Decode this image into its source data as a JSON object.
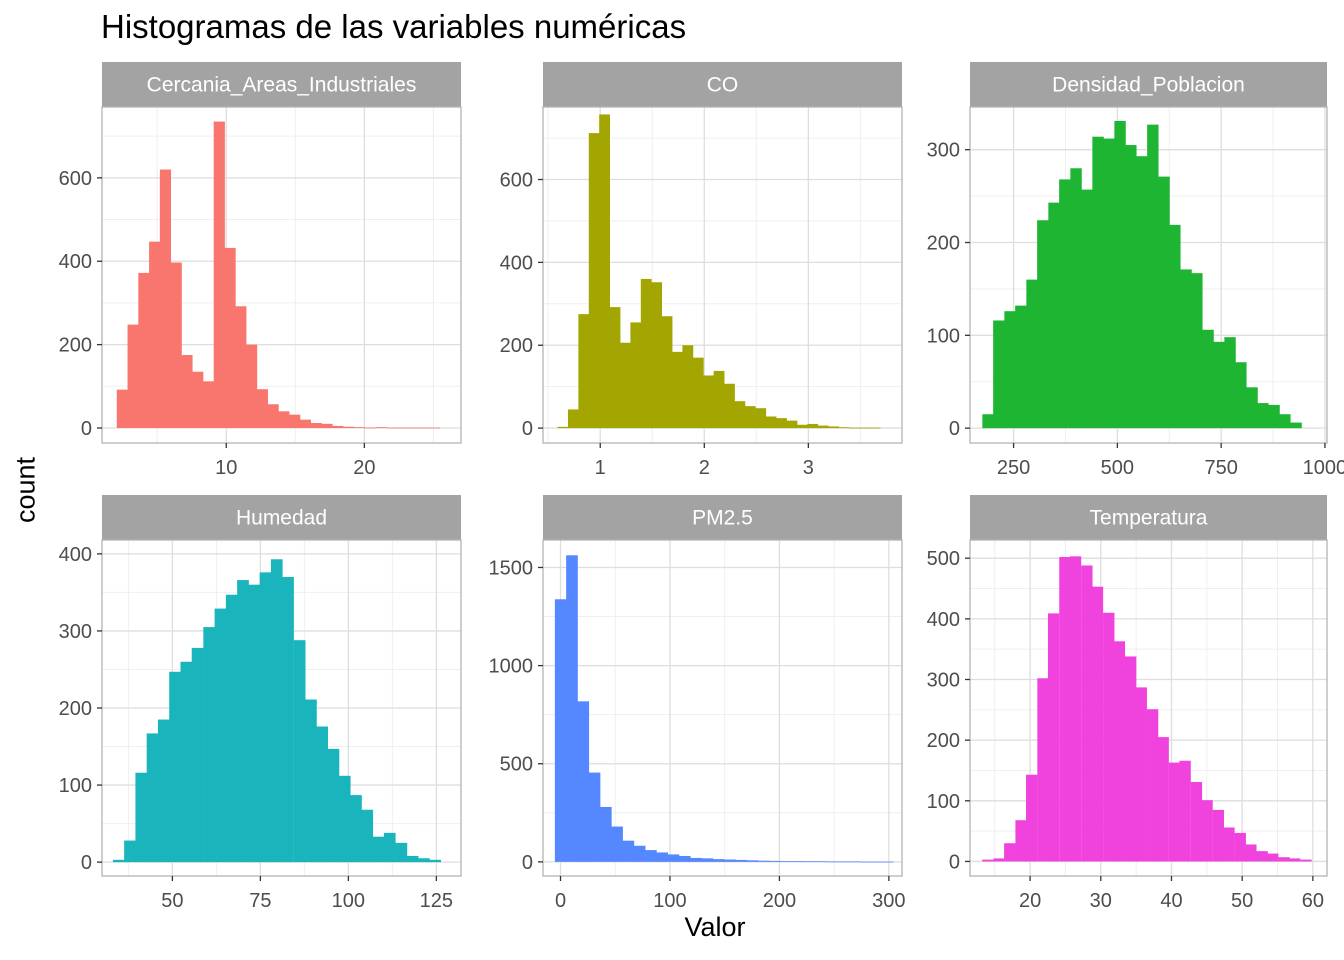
{
  "title": "Histogramas de las variables numéricas",
  "xlabel": "Valor",
  "ylabel": "count",
  "colors": {
    "strip_background": "#a3a3a3",
    "strip_text": "#ffffff",
    "panel_border": "#b3b3b3",
    "grid_major": "#dedede",
    "grid_minor": "#efefef",
    "tick_label": "#4d4d4d"
  },
  "chart_data": [
    {
      "type": "bar",
      "facet": "Cercania_Areas_Industriales",
      "color": "#F8766D",
      "xlim": [
        1,
        27
      ],
      "ylim": [
        -36,
        770
      ],
      "xticks": [
        10,
        20
      ],
      "yticks": [
        0,
        200,
        400,
        600
      ],
      "bin_width": 0.78,
      "bin_centers": [
        2.46,
        3.24,
        4.02,
        4.8,
        5.58,
        6.36,
        7.14,
        7.92,
        8.7,
        9.48,
        10.26,
        11.04,
        11.82,
        12.6,
        13.38,
        14.16,
        14.94,
        15.72,
        16.5,
        17.28,
        18.06,
        18.84,
        19.62,
        20.4,
        21.18,
        21.96,
        22.74,
        23.52,
        24.3,
        25.08
      ],
      "counts": [
        92,
        248,
        372,
        447,
        620,
        397,
        175,
        135,
        112,
        735,
        432,
        292,
        200,
        93,
        57,
        40,
        32,
        20,
        12,
        10,
        5,
        3,
        2,
        1,
        2,
        1,
        1,
        1,
        1,
        1
      ]
    },
    {
      "type": "bar",
      "facet": "CO",
      "color": "#A3A500",
      "xlim": [
        0.45,
        3.9
      ],
      "ylim": [
        -36,
        775
      ],
      "xticks": [
        1,
        2,
        3
      ],
      "yticks": [
        0,
        200,
        400,
        600
      ],
      "bin_width": 0.1,
      "bin_centers": [
        0.64,
        0.74,
        0.84,
        0.94,
        1.04,
        1.14,
        1.24,
        1.34,
        1.44,
        1.54,
        1.64,
        1.74,
        1.84,
        1.94,
        2.04,
        2.14,
        2.24,
        2.34,
        2.44,
        2.54,
        2.64,
        2.74,
        2.84,
        2.94,
        3.04,
        3.14,
        3.24,
        3.34,
        3.44,
        3.54,
        3.64
      ],
      "counts": [
        3,
        45,
        275,
        712,
        757,
        292,
        206,
        255,
        360,
        352,
        270,
        184,
        200,
        170,
        127,
        138,
        107,
        65,
        53,
        48,
        28,
        24,
        18,
        8,
        10,
        6,
        4,
        2,
        1,
        1,
        1
      ]
    },
    {
      "type": "bar",
      "facet": "Densidad_Poblacion",
      "color": "#1EB532",
      "xlim": [
        145,
        1005
      ],
      "ylim": [
        -16,
        346
      ],
      "xticks": [
        250,
        500,
        750,
        1000
      ],
      "yticks": [
        0,
        100,
        200,
        300
      ],
      "bin_width": 26.5,
      "bin_centers": [
        188,
        214,
        241,
        267,
        294,
        320,
        347,
        373,
        400,
        426,
        453,
        479,
        506,
        532,
        559,
        585,
        612,
        638,
        665,
        691,
        718,
        744,
        771,
        797,
        824,
        850,
        877,
        903,
        930
      ],
      "counts": [
        15,
        116,
        126,
        132,
        160,
        224,
        243,
        268,
        280,
        257,
        314,
        312,
        331,
        305,
        293,
        327,
        271,
        219,
        171,
        167,
        106,
        93,
        98,
        71,
        44,
        27,
        25,
        15,
        6
      ]
    },
    {
      "type": "bar",
      "facet": "Humedad",
      "color": "#1AB5BC",
      "xlim": [
        30,
        132
      ],
      "ylim": [
        -18,
        418
      ],
      "xticks": [
        50,
        75,
        100,
        125
      ],
      "yticks": [
        0,
        100,
        200,
        300,
        400
      ],
      "bin_width": 3.21,
      "bin_centers": [
        34.7,
        37.9,
        41.1,
        44.3,
        47.5,
        50.7,
        53.9,
        57.1,
        60.4,
        63.6,
        66.8,
        70,
        73.2,
        76.4,
        79.6,
        82.8,
        86.1,
        89.3,
        92.5,
        95.7,
        98.9,
        102.1,
        105.3,
        108.5,
        111.7,
        115,
        118.2,
        121.4,
        124.6
      ],
      "counts": [
        3,
        28,
        116,
        167,
        185,
        247,
        260,
        278,
        305,
        329,
        347,
        366,
        360,
        376,
        393,
        370,
        288,
        211,
        176,
        147,
        112,
        87,
        68,
        33,
        38,
        25,
        8,
        5,
        3
      ]
    },
    {
      "type": "bar",
      "facet": "PM2.5",
      "color": "#5588FF",
      "xlim": [
        -16,
        312
      ],
      "ylim": [
        -72,
        1640
      ],
      "xticks": [
        0,
        100,
        200,
        300
      ],
      "yticks": [
        0,
        500,
        1000,
        1500
      ],
      "bin_width": 10.3,
      "bin_centers": [
        0,
        10.3,
        20.6,
        30.9,
        41.2,
        51.5,
        61.8,
        72.1,
        82.4,
        92.7,
        103,
        113.3,
        123.6,
        133.9,
        144.2,
        154.5,
        164.8,
        175.1,
        185.4,
        195.7,
        206,
        216.3,
        226.6,
        236.9,
        247.2,
        257.5,
        267.8,
        278.1,
        288.4,
        298.7
      ],
      "counts": [
        1338,
        1562,
        818,
        455,
        280,
        180,
        108,
        82,
        60,
        48,
        38,
        30,
        20,
        18,
        14,
        12,
        10,
        8,
        6,
        5,
        4,
        4,
        3,
        3,
        2,
        2,
        2,
        1,
        1,
        1
      ]
    },
    {
      "type": "bar",
      "facet": "Temperatura",
      "color": "#F042DC",
      "xlim": [
        11.5,
        62
      ],
      "ylim": [
        -24,
        530
      ],
      "xticks": [
        20,
        30,
        40,
        50,
        60
      ],
      "yticks": [
        0,
        100,
        200,
        300,
        400,
        500
      ],
      "bin_width": 1.55,
      "bin_centers": [
        14,
        15.6,
        17.1,
        18.7,
        20.2,
        21.8,
        23.3,
        24.9,
        26.4,
        28,
        29.5,
        31.1,
        32.6,
        34.2,
        35.7,
        37.3,
        38.8,
        40.4,
        41.9,
        43.5,
        45,
        46.6,
        48.1,
        49.7,
        51.2,
        52.8,
        54.3,
        55.9,
        57.4,
        59
      ],
      "counts": [
        3,
        5,
        30,
        68,
        143,
        302,
        409,
        502,
        503,
        488,
        453,
        410,
        363,
        338,
        287,
        251,
        205,
        163,
        166,
        131,
        101,
        85,
        56,
        47,
        28,
        17,
        13,
        7,
        5,
        3
      ]
    }
  ]
}
